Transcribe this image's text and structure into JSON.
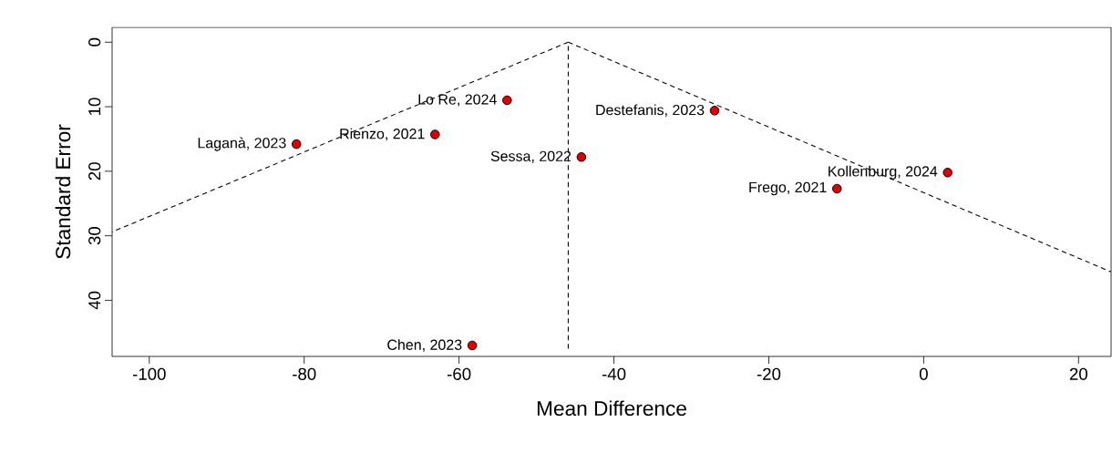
{
  "chart_data": {
    "type": "scatter",
    "xlabel": "Mean Difference",
    "ylabel": "Standard Error",
    "xlim": [
      -104.8,
      24.2
    ],
    "ylim": [
      48.7,
      -2.3
    ],
    "xticks": [
      -100,
      -80,
      -60,
      -40,
      -20,
      0,
      20
    ],
    "yticks": [
      0,
      10,
      20,
      30,
      40
    ],
    "series": [
      {
        "marker": "circle",
        "x": [
          -53.8,
          -27.0,
          -81.0,
          -63.1,
          -44.2,
          3.1,
          -11.2,
          -58.3
        ],
        "values": [
          9.0,
          10.6,
          15.8,
          14.3,
          17.8,
          20.2,
          22.7,
          47.0
        ],
        "color": "#e00000"
      },
      {
        "type": "line",
        "x": [
          -45.9,
          -104.8
        ],
        "values": [
          0,
          29.4
        ],
        "color": "#000000",
        "line_style": "dashed",
        "marker": "none"
      },
      {
        "type": "line",
        "x": [
          -45.9,
          24.2
        ],
        "values": [
          0,
          35.6
        ],
        "color": "#000000",
        "line_style": "dashed",
        "marker": "none"
      },
      {
        "type": "line",
        "x": [
          -45.9,
          -45.9
        ],
        "values": [
          47.5,
          0
        ],
        "color": "#000000",
        "line_style": "dashed",
        "marker": "none"
      }
    ],
    "annotations": [
      {
        "text": "Lo Re, 2024",
        "x": -53.8,
        "y": 9.0
      },
      {
        "text": "Destefanis, 2023",
        "x": -27.0,
        "y": 10.6
      },
      {
        "text": "Laganà, 2023",
        "x": -81.0,
        "y": 15.8
      },
      {
        "text": "Rienzo, 2021",
        "x": -63.1,
        "y": 14.3
      },
      {
        "text": "Sessa, 2022",
        "x": -44.2,
        "y": 17.8
      },
      {
        "text": "Kollenburg, 2024",
        "x": 3.1,
        "y": 20.2
      },
      {
        "text": "Frego, 2021",
        "x": -11.2,
        "y": 22.7
      },
      {
        "text": "Chen, 2023",
        "x": -58.3,
        "y": 47.0
      }
    ]
  }
}
